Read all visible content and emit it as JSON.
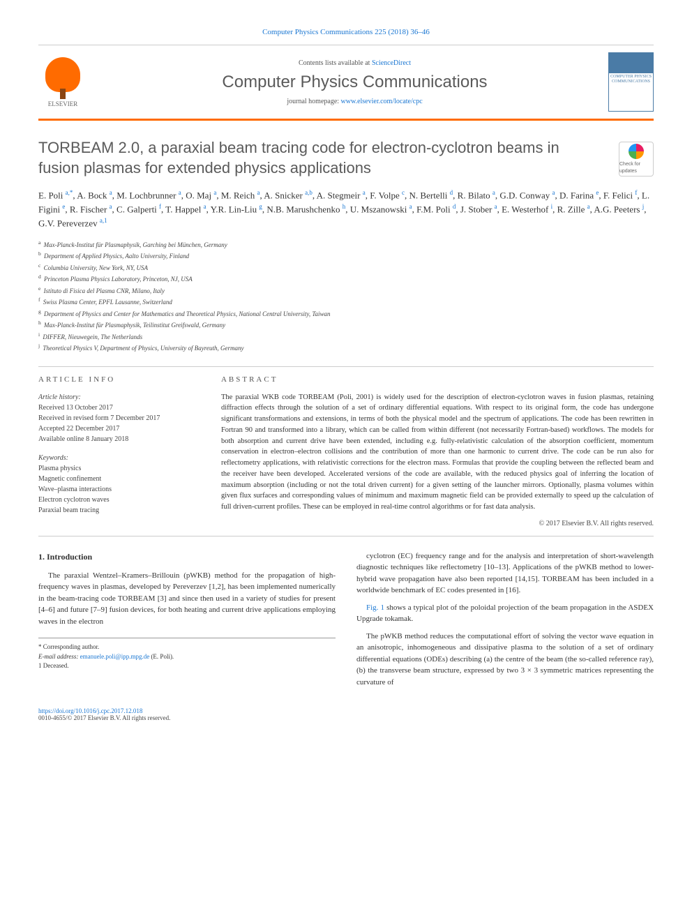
{
  "header": {
    "top_link": "Computer Physics Communications 225 (2018) 36–46",
    "contents_prefix": "Contents lists available at ",
    "contents_link": "ScienceDirect",
    "journal_title": "Computer Physics Communications",
    "homepage_prefix": "journal homepage: ",
    "homepage_link": "www.elsevier.com/locate/cpc",
    "publisher_label": "ELSEVIER",
    "cover_text": "COMPUTER PHYSICS COMMUNICATIONS"
  },
  "article": {
    "title": "TORBEAM 2.0, a paraxial beam tracing code for electron-cyclotron beams in fusion plasmas for extended physics applications",
    "check_updates": "Check for updates"
  },
  "authors_html": "E. Poli <sup>a,*</sup>, A. Bock <sup>a</sup>, M. Lochbrunner <sup>a</sup>, O. Maj <sup>a</sup>, M. Reich <sup>a</sup>, A. Snicker <sup>a,b</sup>, A. Stegmeir <sup>a</sup>, F. Volpe <sup>c</sup>, N. Bertelli <sup>d</sup>, R. Bilato <sup>a</sup>, G.D. Conway <sup>a</sup>, D. Farina <sup>e</sup>, F. Felici <sup>f</sup>, L. Figini <sup>e</sup>, R. Fischer <sup>a</sup>, C. Galperti <sup>f</sup>, T. Happel <sup>a</sup>, Y.R. Lin-Liu <sup>g</sup>, N.B. Marushchenko <sup>h</sup>, U. Mszanowski <sup>a</sup>, F.M. Poli <sup>d</sup>, J. Stober <sup>a</sup>, E. Westerhof <sup>i</sup>, R. Zille <sup>a</sup>, A.G. Peeters <sup>j</sup>, G.V. Pereverzev <sup>a,1</sup>",
  "affiliations": [
    {
      "sup": "a",
      "text": "Max-Planck-Institut für Plasmaphysik, Garching bei München, Germany"
    },
    {
      "sup": "b",
      "text": "Department of Applied Physics, Aalto University, Finland"
    },
    {
      "sup": "c",
      "text": "Columbia University, New York, NY, USA"
    },
    {
      "sup": "d",
      "text": "Princeton Plasma Physics Laboratory, Princeton, NJ, USA"
    },
    {
      "sup": "e",
      "text": "Istituto di Fisica del Plasma CNR, Milano, Italy"
    },
    {
      "sup": "f",
      "text": "Swiss Plasma Center, EPFL Lausanne, Switzerland"
    },
    {
      "sup": "g",
      "text": "Department of Physics and Center for Mathematics and Theoretical Physics, National Central University, Taiwan"
    },
    {
      "sup": "h",
      "text": "Max-Planck-Institut für Plasmaphysik, Teilinstitut Greifswald, Germany"
    },
    {
      "sup": "i",
      "text": "DIFFER, Nieuwegein, The Netherlands"
    },
    {
      "sup": "j",
      "text": "Theoretical Physics V, Department of Physics, University of Bayreuth, Germany"
    }
  ],
  "info": {
    "label": "ARTICLE INFO",
    "history_title": "Article history:",
    "history": [
      "Received 13 October 2017",
      "Received in revised form 7 December 2017",
      "Accepted 22 December 2017",
      "Available online 8 January 2018"
    ],
    "keywords_title": "Keywords:",
    "keywords": [
      "Plasma physics",
      "Magnetic confinement",
      "Wave–plasma interactions",
      "Electron cyclotron waves",
      "Paraxial beam tracing"
    ]
  },
  "abstract": {
    "label": "ABSTRACT",
    "text": "The paraxial WKB code TORBEAM (Poli, 2001) is widely used for the description of electron-cyclotron waves in fusion plasmas, retaining diffraction effects through the solution of a set of ordinary differential equations. With respect to its original form, the code has undergone significant transformations and extensions, in terms of both the physical model and the spectrum of applications. The code has been rewritten in Fortran 90 and transformed into a library, which can be called from within different (not necessarily Fortran-based) workflows. The models for both absorption and current drive have been extended, including e.g. fully-relativistic calculation of the absorption coefficient, momentum conservation in electron–electron collisions and the contribution of more than one harmonic to current drive. The code can be run also for reflectometry applications, with relativistic corrections for the electron mass. Formulas that provide the coupling between the reflected beam and the receiver have been developed. Accelerated versions of the code are available, with the reduced physics goal of inferring the location of maximum absorption (including or not the total driven current) for a given setting of the launcher mirrors. Optionally, plasma volumes within given flux surfaces and corresponding values of minimum and maximum magnetic field can be provided externally to speed up the calculation of full driven-current profiles. These can be employed in real-time control algorithms or for fast data analysis.",
    "copyright": "© 2017 Elsevier B.V. All rights reserved."
  },
  "body": {
    "heading": "1. Introduction",
    "left_p1": "The paraxial Wentzel–Kramers–Brillouin (pWKB) method for the propagation of high-frequency waves in plasmas, developed by Pereverzev [1,2], has been implemented numerically in the beam-tracing code TORBEAM [3] and since then used in a variety of studies for present [4–6] and future [7–9] fusion devices, for both heating and current drive applications employing waves in the electron",
    "right_p1": "cyclotron (EC) frequency range and for the analysis and interpretation of short-wavelength diagnostic techniques like reflectometry [10–13]. Applications of the pWKB method to lower-hybrid wave propagation have also been reported [14,15]. TORBEAM has been included in a worldwide benchmark of EC codes presented in [16].",
    "right_p2_prefix": "Fig. 1",
    "right_p2": " shows a typical plot of the poloidal projection of the beam propagation in the ASDEX Upgrade tokamak.",
    "right_p3": "The pWKB method reduces the computational effort of solving the vector wave equation in an anisotropic, inhomogeneous and dissipative plasma to the solution of a set of ordinary differential equations (ODEs) describing (a) the centre of the beam (the so-called reference ray), (b) the transverse beam structure, expressed by two 3 × 3 symmetric matrices representing the curvature of"
  },
  "footnotes": {
    "corr_label": "* Corresponding author.",
    "email_label": "E-mail address:",
    "email": "emanuele.poli@ipp.mpg.de",
    "email_suffix": "(E. Poli).",
    "deceased": "1  Deceased."
  },
  "footer": {
    "doi": "https://doi.org/10.1016/j.cpc.2017.12.018",
    "issn_line": "0010-4655/© 2017 Elsevier B.V. All rights reserved."
  },
  "colors": {
    "link": "#1976d2",
    "accent": "#ff6b00",
    "text": "#333333"
  }
}
